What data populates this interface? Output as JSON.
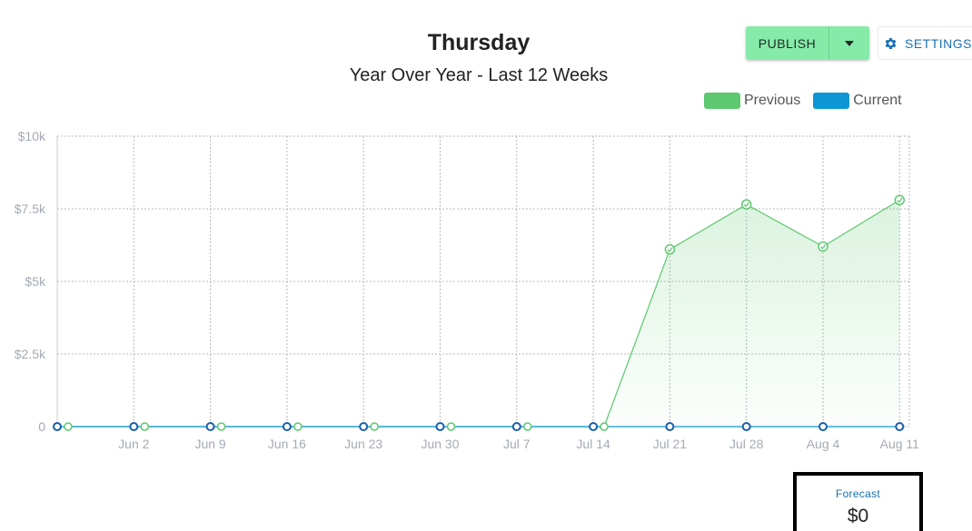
{
  "header": {
    "title": "Thursday",
    "subtitle": "Year Over Year - Last 12 Weeks"
  },
  "toolbar": {
    "publish_label": "PUBLISH",
    "publish_dropdown_icon": "caret-down-icon",
    "settings_label": "SETTINGS",
    "settings_icon": "gear-icon",
    "publish_color": "#86eba9",
    "settings_color": "#1a73b8"
  },
  "forecast": {
    "label": "Forecast",
    "value": "$0"
  },
  "chart_data": {
    "type": "area",
    "title": "Thursday",
    "subtitle": "Year Over Year - Last 12 Weeks",
    "x_tick_labels": [
      "",
      "Jun 2",
      "Jun 9",
      "Jun 16",
      "Jun 23",
      "Jun 30",
      "Jul 7",
      "Jul 14",
      "Jul 21",
      "Jul 28",
      "Aug 4",
      "Aug 11"
    ],
    "y_ticks": [
      0,
      2500,
      5000,
      7500,
      10000
    ],
    "y_tick_labels": [
      "0",
      "$2.5k",
      "$5k",
      "$7.5k",
      "$10k"
    ],
    "ylim": [
      0,
      10000
    ],
    "grid": true,
    "legend_position": "top-right",
    "series": [
      {
        "name": "Previous",
        "color": "#5dc86f",
        "fill": true,
        "values": [
          0,
          0,
          0,
          0,
          0,
          0,
          0,
          0,
          6100,
          7650,
          6200,
          7800
        ]
      },
      {
        "name": "Current",
        "color": "#0d96d6",
        "marker_color": "#1a5fa8",
        "fill": false,
        "values": [
          0,
          0,
          0,
          0,
          0,
          0,
          0,
          0,
          0,
          0,
          0,
          0
        ]
      }
    ]
  }
}
